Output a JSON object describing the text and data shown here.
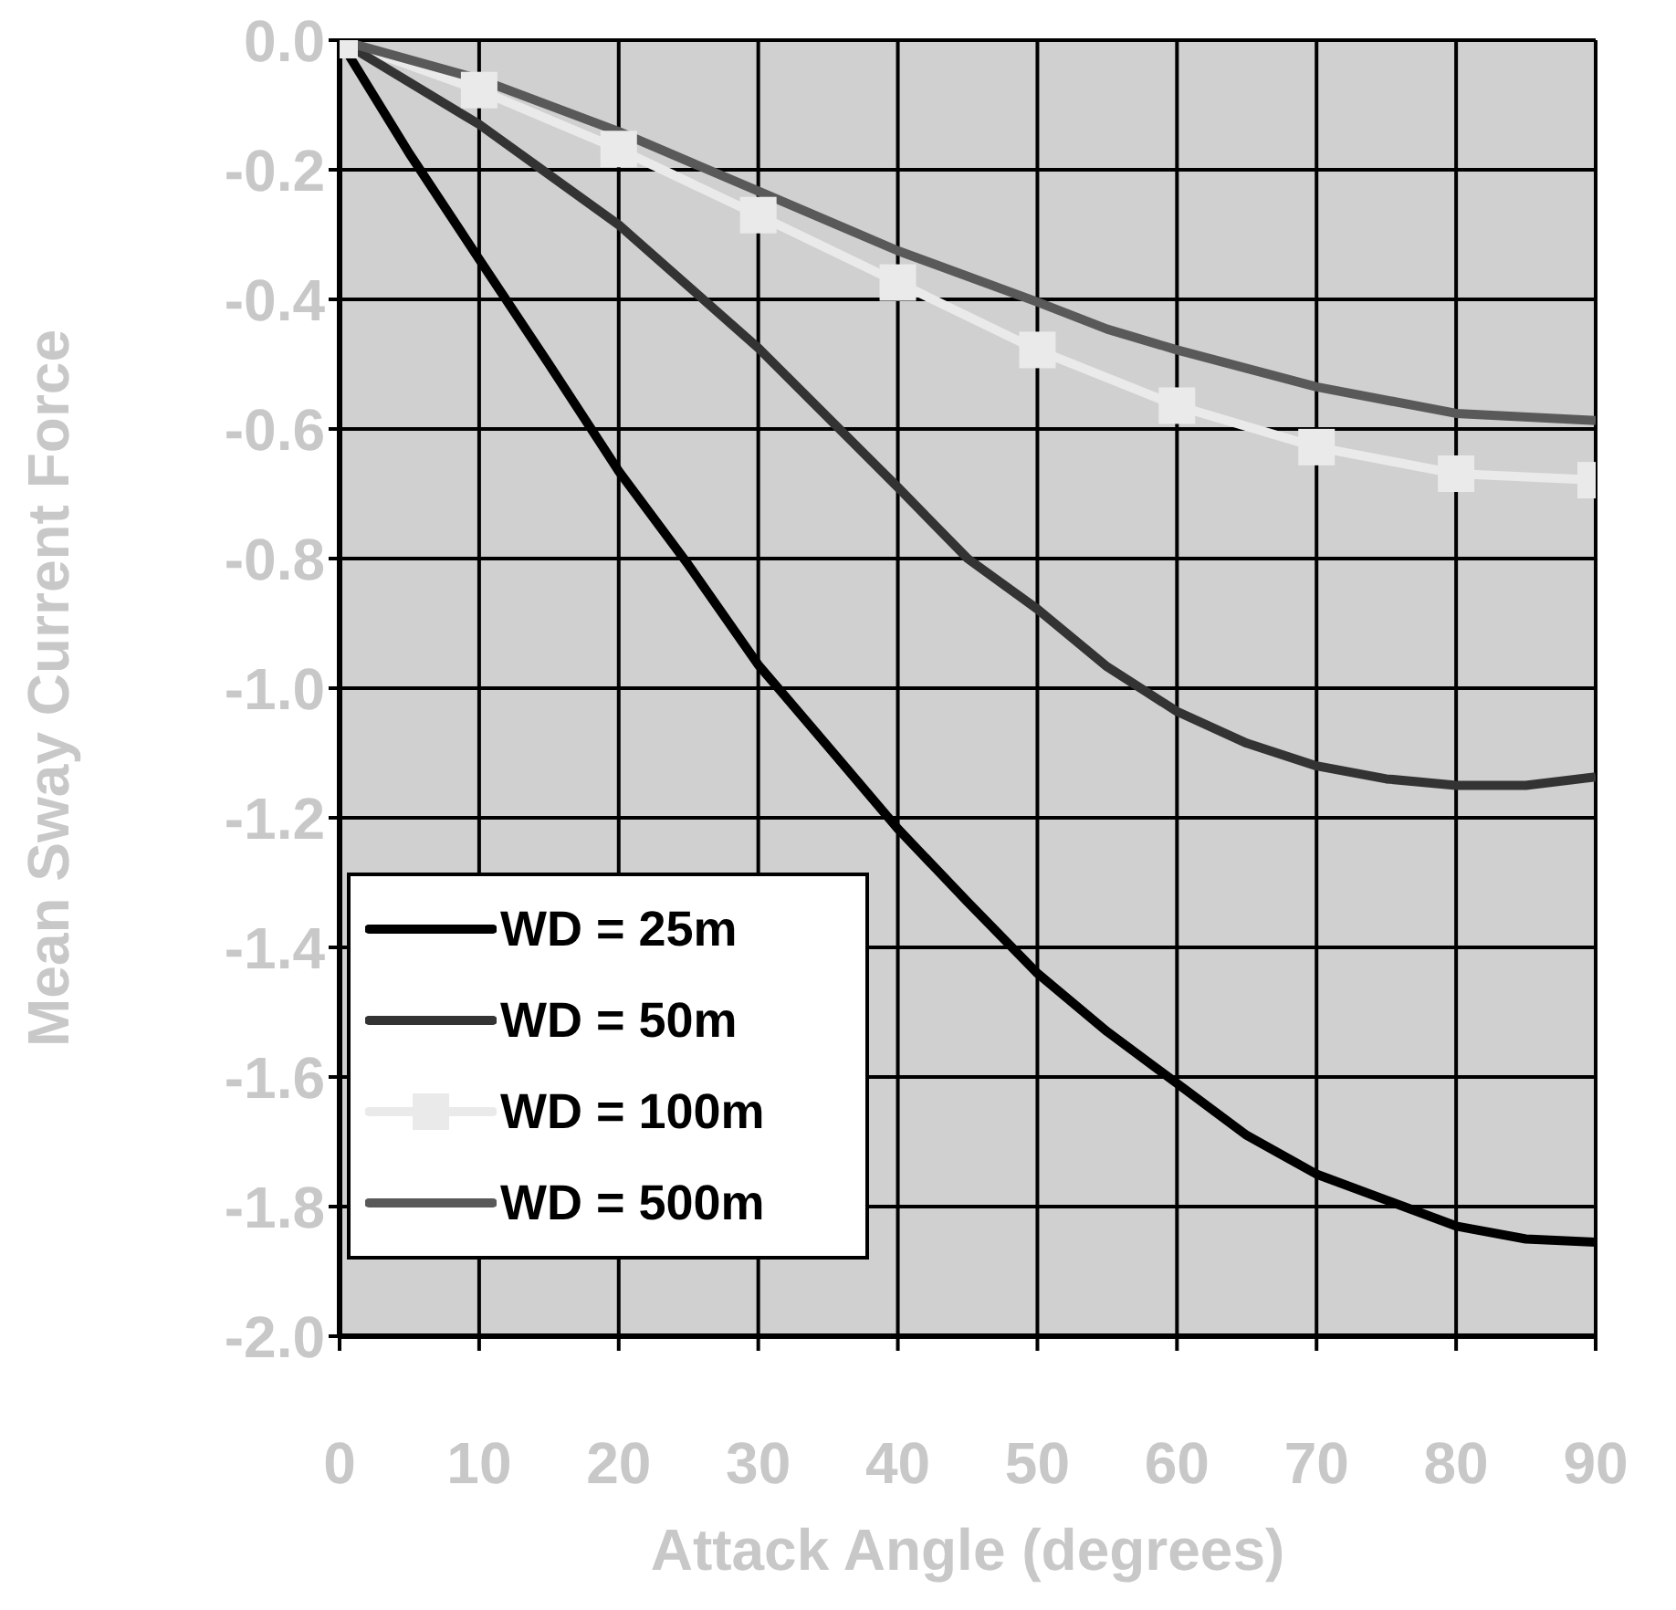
{
  "chart_data": {
    "type": "line",
    "xlabel": "Attack Angle (degrees)",
    "ylabel": "Mean Sway Current Force",
    "xlim": [
      0,
      90
    ],
    "xticks": [
      0,
      10,
      20,
      30,
      40,
      50,
      60,
      70,
      80,
      90
    ],
    "ylim": [
      -2.0,
      0.0
    ],
    "yticks": [
      {
        "value": 0,
        "label": "0.0"
      },
      {
        "value": -0.2,
        "label": "-0.2"
      },
      {
        "value": -0.4,
        "label": "-0.4"
      },
      {
        "value": -0.6,
        "label": "-0.6"
      },
      {
        "value": -0.8,
        "label": "-0.8"
      },
      {
        "value": -1.0,
        "label": "-1.0"
      },
      {
        "value": -1.2,
        "label": "-1.2"
      },
      {
        "value": -1.4,
        "label": "-1.4"
      },
      {
        "value": -1.6,
        "label": "-1.6"
      },
      {
        "value": -1.8,
        "label": "-1.8"
      },
      {
        "value": -2.0,
        "label": "-2.0"
      }
    ],
    "grid": true,
    "legend": "bottom left",
    "series": [
      {
        "name": "WD = 25m",
        "color": "#000000",
        "marker": "none",
        "x": [
          0,
          5,
          10,
          15,
          20,
          25,
          30,
          35,
          40,
          45,
          50,
          55,
          60,
          65,
          70,
          75,
          80,
          85,
          90
        ],
        "values": [
          0,
          -0.175,
          -0.338,
          -0.5,
          -0.665,
          -0.81,
          -0.964,
          -1.09,
          -1.217,
          -1.33,
          -1.44,
          -1.53,
          -1.61,
          -1.69,
          -1.75,
          -1.79,
          -1.83,
          -1.85,
          -1.855
        ]
      },
      {
        "name": "WD = 50m",
        "color": "#333333",
        "marker": "none",
        "x": [
          0,
          10,
          20,
          30,
          40,
          45,
          50,
          55,
          60,
          65,
          70,
          75,
          80,
          85,
          90
        ],
        "values": [
          0,
          -0.13,
          -0.285,
          -0.475,
          -0.69,
          -0.8,
          -0.878,
          -0.967,
          -1.036,
          -1.085,
          -1.12,
          -1.14,
          -1.15,
          -1.15,
          -1.137
        ]
      },
      {
        "name": "WD = 100m",
        "color": "#eaeaea",
        "marker": "square",
        "x": [
          0,
          10,
          20,
          30,
          40,
          50,
          60,
          70,
          80,
          90
        ],
        "values": [
          0,
          -0.077,
          -0.168,
          -0.27,
          -0.374,
          -0.478,
          -0.564,
          -0.628,
          -0.669,
          -0.679
        ]
      },
      {
        "name": "WD = 500m",
        "color": "#595959",
        "marker": "none",
        "x": [
          0,
          10,
          20,
          30,
          40,
          50,
          55,
          60,
          70,
          80,
          90
        ],
        "values": [
          0,
          -0.06,
          -0.141,
          -0.233,
          -0.325,
          -0.404,
          -0.446,
          -0.478,
          -0.535,
          -0.576,
          -0.587
        ]
      }
    ]
  }
}
